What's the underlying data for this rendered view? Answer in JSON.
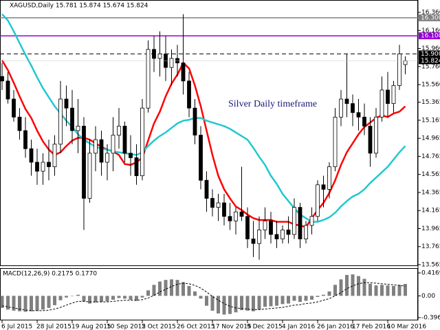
{
  "chart_data": [
    {
      "type": "candlestick",
      "title": "XAGUSD,Daily  15.781 15.874 15.674 15.824",
      "annotation": "Silver Daily timeframe",
      "categories": [
        "6 Jul 2015",
        null,
        null,
        null,
        null,
        null,
        "28 Jul 2015",
        null,
        null,
        null,
        null,
        null,
        "19 Aug 2015",
        null,
        null,
        null,
        null,
        null,
        "10 Sep 2015",
        null,
        null,
        null,
        null,
        null,
        "2 Oct 2015",
        null,
        null,
        null,
        null,
        null,
        "26 Oct 2015",
        null,
        null,
        null,
        null,
        null,
        "17 Nov 2015",
        null,
        null,
        null,
        null,
        null,
        "9 Dec 2015",
        null,
        null,
        null,
        null,
        null,
        "4 Jan 2016",
        null,
        null,
        null,
        null,
        null,
        "26 Jan 2016",
        null,
        null,
        null,
        null,
        null,
        "17 Feb 2016",
        null,
        null,
        null,
        null,
        null,
        "10 Mar 2016",
        null,
        null,
        null
      ],
      "open": [
        15.65,
        15.6,
        15.4,
        15.2,
        15.05,
        14.85,
        14.7,
        14.6,
        14.7,
        14.65,
        14.9,
        15.4,
        15.3,
        15.05,
        15.1,
        14.3,
        14.8,
        14.95,
        14.7,
        14.8,
        15.0,
        15.1,
        14.8,
        14.75,
        14.55,
        15.3,
        15.95,
        15.85,
        15.9,
        15.75,
        15.85,
        15.8,
        15.6,
        15.3,
        15.0,
        14.5,
        14.3,
        14.2,
        14.25,
        14.1,
        14.05,
        14.15,
        14.1,
        13.85,
        13.8,
        13.95,
        14.05,
        13.9,
        13.85,
        13.95,
        13.9,
        14.2,
        13.85,
        14.0,
        14.1,
        14.45,
        14.4,
        14.65,
        15.2,
        15.4,
        15.35,
        15.25,
        15.2,
        15.1,
        14.8,
        15.2,
        15.5,
        15.35,
        15.55,
        15.781
      ],
      "high": [
        15.8,
        15.7,
        15.5,
        15.3,
        15.2,
        14.95,
        14.85,
        14.8,
        14.95,
        15.0,
        15.6,
        15.55,
        15.5,
        15.4,
        15.2,
        14.95,
        15.1,
        15.05,
        14.9,
        15.2,
        15.3,
        15.15,
        15.0,
        14.9,
        15.4,
        16.05,
        16.1,
        16.15,
        16.1,
        15.95,
        16.0,
        16.34,
        15.7,
        15.4,
        15.1,
        14.6,
        14.4,
        14.35,
        14.35,
        14.25,
        14.2,
        14.65,
        14.2,
        14.05,
        14.1,
        14.2,
        14.15,
        14.05,
        14.0,
        14.1,
        14.3,
        14.25,
        14.05,
        14.2,
        14.5,
        14.55,
        14.7,
        15.3,
        15.5,
        15.9,
        15.45,
        15.4,
        15.35,
        15.2,
        15.3,
        15.65,
        15.7,
        15.6,
        16.0,
        15.874
      ],
      "low": [
        15.5,
        15.35,
        15.15,
        14.95,
        14.75,
        14.55,
        14.45,
        14.45,
        14.5,
        14.55,
        14.8,
        15.1,
        14.9,
        14.8,
        13.95,
        14.25,
        14.6,
        14.55,
        14.5,
        14.6,
        14.85,
        14.7,
        14.55,
        14.45,
        14.5,
        15.25,
        15.7,
        15.65,
        15.6,
        15.55,
        15.65,
        15.45,
        15.2,
        14.9,
        14.4,
        14.15,
        14.1,
        14.05,
        14.0,
        13.95,
        13.9,
        14.05,
        13.75,
        13.65,
        13.62,
        13.85,
        13.8,
        13.75,
        13.8,
        13.8,
        13.85,
        13.75,
        13.8,
        13.9,
        14.05,
        14.2,
        14.3,
        14.6,
        15.1,
        15.2,
        15.1,
        15.05,
        15.0,
        14.65,
        14.75,
        15.15,
        15.2,
        15.25,
        15.5,
        15.674
      ],
      "close": [
        15.6,
        15.4,
        15.2,
        15.05,
        14.85,
        14.7,
        14.6,
        14.7,
        14.65,
        14.9,
        15.4,
        15.3,
        15.05,
        15.1,
        14.3,
        14.8,
        14.95,
        14.7,
        14.8,
        15.0,
        15.1,
        14.8,
        14.75,
        14.55,
        15.3,
        15.95,
        15.85,
        15.9,
        15.75,
        15.85,
        15.8,
        15.6,
        15.3,
        15.0,
        14.5,
        14.3,
        14.2,
        14.25,
        14.1,
        14.05,
        14.15,
        14.1,
        13.85,
        13.8,
        13.95,
        14.05,
        13.9,
        13.85,
        13.95,
        13.9,
        14.2,
        13.85,
        14.0,
        14.1,
        14.45,
        14.4,
        14.65,
        15.2,
        15.4,
        15.35,
        15.25,
        15.2,
        15.1,
        14.8,
        15.2,
        15.5,
        15.35,
        15.55,
        15.9,
        15.824
      ],
      "lines": [
        {
          "color": "#ff0000",
          "values": [
            15.83,
            15.72,
            15.58,
            15.43,
            15.29,
            15.19,
            15.05,
            14.93,
            14.84,
            14.78,
            14.81,
            14.88,
            14.94,
            14.97,
            14.97,
            14.95,
            14.91,
            14.87,
            14.84,
            14.82,
            14.78,
            14.68,
            14.67,
            14.7,
            14.75,
            14.94,
            15.13,
            15.26,
            15.43,
            15.57,
            15.67,
            15.8,
            15.74,
            15.55,
            15.32,
            15.05,
            14.78,
            14.55,
            14.4,
            14.3,
            14.21,
            14.17,
            14.12,
            14.08,
            14.06,
            14.06,
            14.06,
            14.04,
            14.04,
            14.04,
            14.01,
            14.0,
            13.98,
            14.08,
            14.17,
            14.25,
            14.36,
            14.5,
            14.67,
            14.81,
            14.91,
            15.01,
            15.09,
            15.14,
            15.19,
            15.22,
            15.2,
            15.24,
            15.26,
            15.32
          ]
        },
        {
          "color": "#20c8d0",
          "values": [
            16.34,
            16.27,
            16.15,
            16.02,
            15.89,
            15.77,
            15.64,
            15.52,
            15.42,
            15.32,
            15.24,
            15.16,
            15.09,
            15.01,
            14.95,
            14.91,
            14.87,
            14.85,
            14.84,
            14.82,
            14.81,
            14.8,
            14.79,
            14.78,
            14.81,
            14.88,
            14.94,
            14.99,
            15.03,
            15.08,
            15.13,
            15.16,
            15.17,
            15.19,
            15.19,
            15.16,
            15.14,
            15.12,
            15.1,
            15.07,
            15.03,
            14.99,
            14.95,
            14.86,
            14.76,
            14.67,
            14.55,
            14.46,
            14.35,
            14.27,
            14.19,
            14.12,
            14.08,
            14.04,
            14.04,
            14.06,
            14.09,
            14.14,
            14.21,
            14.27,
            14.32,
            14.35,
            14.4,
            14.47,
            14.53,
            14.59,
            14.65,
            14.73,
            14.81,
            14.88
          ]
        }
      ],
      "levels": [
        {
          "value": 16.3,
          "label": "16.300",
          "color": "#808080",
          "style": "solid"
        },
        {
          "value": 16.1,
          "label": "16.100",
          "color": "#9400d3",
          "style": "solid"
        },
        {
          "value": 15.9,
          "label": "15.900",
          "color": "#000000",
          "style": "dashed"
        }
      ],
      "ylim": [
        13.565,
        16.36
      ],
      "yticks": [
        {
          "value": 16.36,
          "label": "16.360"
        },
        {
          "value": 16.16,
          "label": "16.160"
        },
        {
          "value": 15.96,
          "label": "15.960"
        },
        {
          "value": 15.76,
          "label": "15.760"
        },
        {
          "value": 15.56,
          "label": "15.560"
        },
        15.365,
        15.165,
        14.965,
        14.765,
        14.565,
        14.365,
        14.165,
        13.965,
        13.765,
        13.565
      ]
    },
    {
      "type": "bar",
      "title": "MACD(12,26,9) 0.2175 0.1770",
      "color": "#808080",
      "values": [
        -0.22,
        -0.25,
        -0.27,
        -0.28,
        -0.29,
        -0.28,
        -0.27,
        -0.25,
        -0.22,
        -0.17,
        -0.08,
        -0.03,
        0.0,
        0.02,
        -0.1,
        -0.14,
        -0.12,
        -0.11,
        -0.1,
        -0.07,
        -0.04,
        -0.05,
        -0.07,
        -0.09,
        -0.03,
        0.1,
        0.2,
        0.26,
        0.29,
        0.3,
        0.29,
        0.25,
        0.18,
        0.08,
        -0.05,
        -0.18,
        -0.27,
        -0.32,
        -0.34,
        -0.33,
        -0.3,
        -0.26,
        -0.27,
        -0.28,
        -0.25,
        -0.2,
        -0.19,
        -0.18,
        -0.15,
        -0.14,
        -0.09,
        -0.11,
        -0.09,
        -0.07,
        -0.02,
        0.02,
        0.08,
        0.2,
        0.3,
        0.38,
        0.39,
        0.36,
        0.31,
        0.22,
        0.19,
        0.2,
        0.19,
        0.18,
        0.2,
        0.2175
      ],
      "signal": [
        -0.18,
        -0.2,
        -0.22,
        -0.24,
        -0.26,
        -0.27,
        -0.27,
        -0.27,
        -0.26,
        -0.24,
        -0.21,
        -0.17,
        -0.13,
        -0.1,
        -0.1,
        -0.11,
        -0.11,
        -0.11,
        -0.11,
        -0.1,
        -0.09,
        -0.08,
        -0.08,
        -0.08,
        -0.07,
        -0.04,
        0.01,
        0.07,
        0.12,
        0.17,
        0.21,
        0.23,
        0.22,
        0.19,
        0.14,
        0.07,
        -0.01,
        -0.08,
        -0.14,
        -0.19,
        -0.22,
        -0.23,
        -0.24,
        -0.25,
        -0.25,
        -0.24,
        -0.23,
        -0.22,
        -0.21,
        -0.19,
        -0.17,
        -0.16,
        -0.14,
        -0.13,
        -0.11,
        -0.08,
        -0.05,
        0.0,
        0.06,
        0.13,
        0.18,
        0.22,
        0.24,
        0.24,
        0.23,
        0.22,
        0.21,
        0.2,
        0.19,
        0.177
      ],
      "ylim": [
        -0.3962,
        0.4169
      ],
      "yticks": [
        0.4169,
        {
          "value": 0,
          "label": "0.00"
        },
        -0.3962
      ]
    }
  ]
}
